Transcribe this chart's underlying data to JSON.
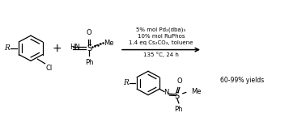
{
  "bg_color": "#ffffff",
  "line_color": "#000000",
  "text_color": "#000000",
  "condition_lines": [
    "5% mol Pd₂(dba)₃",
    "10% mol RuPhos",
    "1.4 eq Cs₂CO₃, toluene",
    "135 °C, 24 h"
  ],
  "yield_text": "60-99% yields",
  "figsize": [
    3.78,
    1.4
  ],
  "dpi": 100
}
